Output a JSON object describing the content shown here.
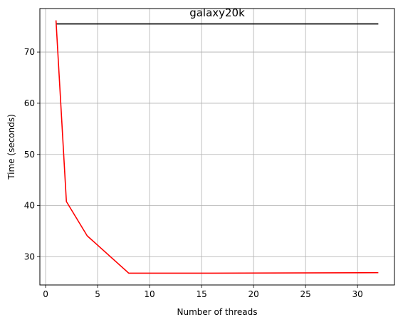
{
  "chart_data": {
    "type": "line",
    "title": "galaxy20k",
    "xlabel": "Number of threads",
    "ylabel": "Time (seconds)",
    "xlim": [
      -0.55,
      33.55
    ],
    "ylim": [
      24.5,
      78.5
    ],
    "x_ticks": [
      0,
      5,
      10,
      15,
      20,
      25,
      30
    ],
    "x_tick_labels": [
      "0",
      "5",
      "10",
      "15",
      "20",
      "25",
      "30"
    ],
    "y_ticks": [
      30,
      40,
      50,
      60,
      70
    ],
    "y_tick_labels": [
      "30",
      "40",
      "50",
      "60",
      "70"
    ],
    "grid": true,
    "legend": "none",
    "series": [
      {
        "color": "#000000",
        "x": [
          1,
          32
        ],
        "y": [
          75.5,
          75.5
        ]
      },
      {
        "color": "#ff0000",
        "x": [
          1,
          2,
          4,
          8,
          16,
          32
        ],
        "y": [
          76.2,
          40.8,
          34.1,
          26.8,
          26.8,
          26.9
        ]
      }
    ]
  }
}
